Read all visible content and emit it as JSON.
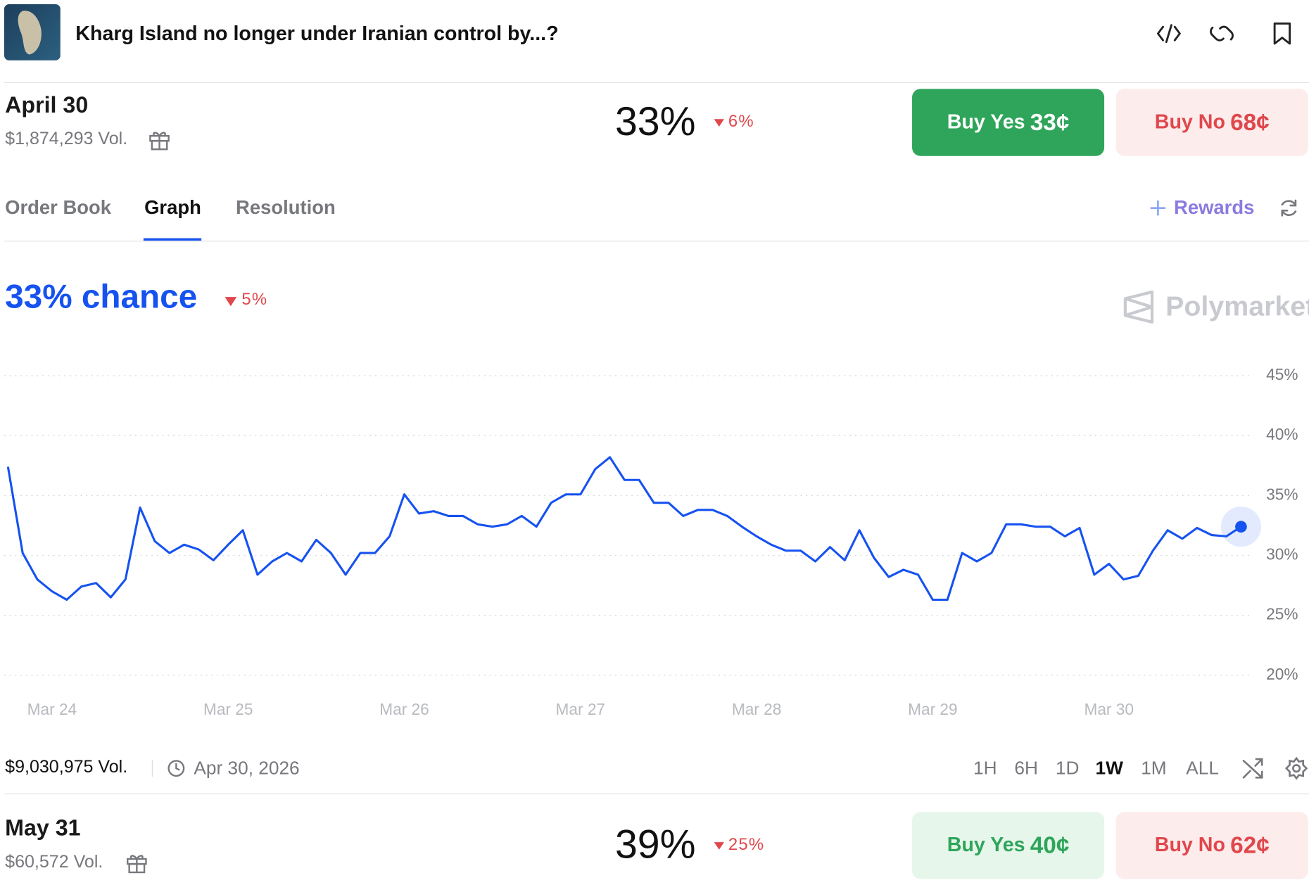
{
  "header": {
    "title": "Kharg Island no longer under Iranian control by...?"
  },
  "markets": [
    {
      "date": "April 30",
      "volume": "$1,874,293 Vol.",
      "chance": "33%",
      "change": "6%",
      "buy_yes": "Buy Yes",
      "yes_price": "33¢",
      "buy_no": "Buy No",
      "no_price": "68¢"
    },
    {
      "date": "May 31",
      "volume": "$60,572 Vol.",
      "chance": "39%",
      "change": "25%",
      "buy_yes": "Buy Yes",
      "yes_price": "40¢",
      "buy_no": "Buy No",
      "no_price": "62¢"
    }
  ],
  "tabs": [
    "Order Book",
    "Graph",
    "Resolution"
  ],
  "rewards": "Rewards",
  "chart_data": {
    "type": "line",
    "title": "33% chance",
    "change": "5%",
    "brand": "Polymarket",
    "categories": [
      null,
      null,
      null,
      "Mar 24",
      null,
      null,
      null,
      null,
      null,
      null,
      null,
      null,
      null,
      null,
      null,
      "Mar 25",
      null,
      null,
      null,
      null,
      null,
      null,
      null,
      null,
      null,
      null,
      null,
      "Mar 26",
      null,
      null,
      null,
      null,
      null,
      null,
      null,
      null,
      null,
      null,
      null,
      "Mar 27",
      null,
      null,
      null,
      null,
      null,
      null,
      null,
      null,
      null,
      null,
      null,
      "Mar 28",
      null,
      null,
      null,
      null,
      null,
      null,
      null,
      null,
      null,
      null,
      null,
      "Mar 29",
      null,
      null,
      null,
      null,
      null,
      null,
      null,
      null,
      null,
      null,
      null,
      "Mar 30",
      null,
      null,
      null,
      null,
      null,
      null,
      null,
      null,
      null
    ],
    "series": [
      {
        "name": "April 30",
        "color": "#1652f0",
        "values": [
          37.4,
          30.2,
          28,
          27,
          26.3,
          27.4,
          27.7,
          26.5,
          28,
          34,
          31.2,
          30.2,
          30.9,
          30.5,
          29.6,
          30.9,
          32.1,
          28.4,
          29.5,
          30.2,
          29.5,
          31.3,
          30.2,
          28.4,
          30.2,
          30.2,
          31.6,
          35.1,
          33.5,
          33.7,
          33.3,
          33.3,
          32.6,
          32.4,
          32.6,
          33.3,
          32.4,
          34.4,
          35.1,
          35.1,
          37.2,
          38.2,
          36.3,
          36.3,
          34.4,
          34.4,
          33.3,
          33.8,
          33.8,
          33.3,
          32.4,
          31.6,
          30.9,
          30.4,
          30.4,
          29.5,
          30.7,
          29.6,
          32.1,
          29.8,
          28.2,
          28.8,
          28.4,
          26.3,
          26.3,
          30.2,
          29.5,
          30.2,
          32.6,
          32.6,
          32.4,
          32.4,
          31.6,
          32.3,
          28.4,
          29.3,
          28,
          28.3,
          30.4,
          32.1,
          31.4,
          32.3,
          31.7,
          31.6,
          32.4
        ]
      }
    ],
    "ylim": [
      19,
      46
    ],
    "yticks": [
      {
        "value": 20,
        "label": "20%"
      },
      {
        "value": 25,
        "label": "25%"
      },
      {
        "value": 30,
        "label": "30%"
      },
      {
        "value": 35,
        "label": "35%"
      },
      {
        "value": 40,
        "label": "40%"
      },
      {
        "value": 45,
        "label": "45%"
      }
    ],
    "grid": true
  },
  "footer": {
    "volume": "$9,030,975 Vol.",
    "end_date": "Apr 30, 2026",
    "ranges": [
      "1H",
      "6H",
      "1D",
      "1W",
      "1M",
      "ALL"
    ]
  }
}
